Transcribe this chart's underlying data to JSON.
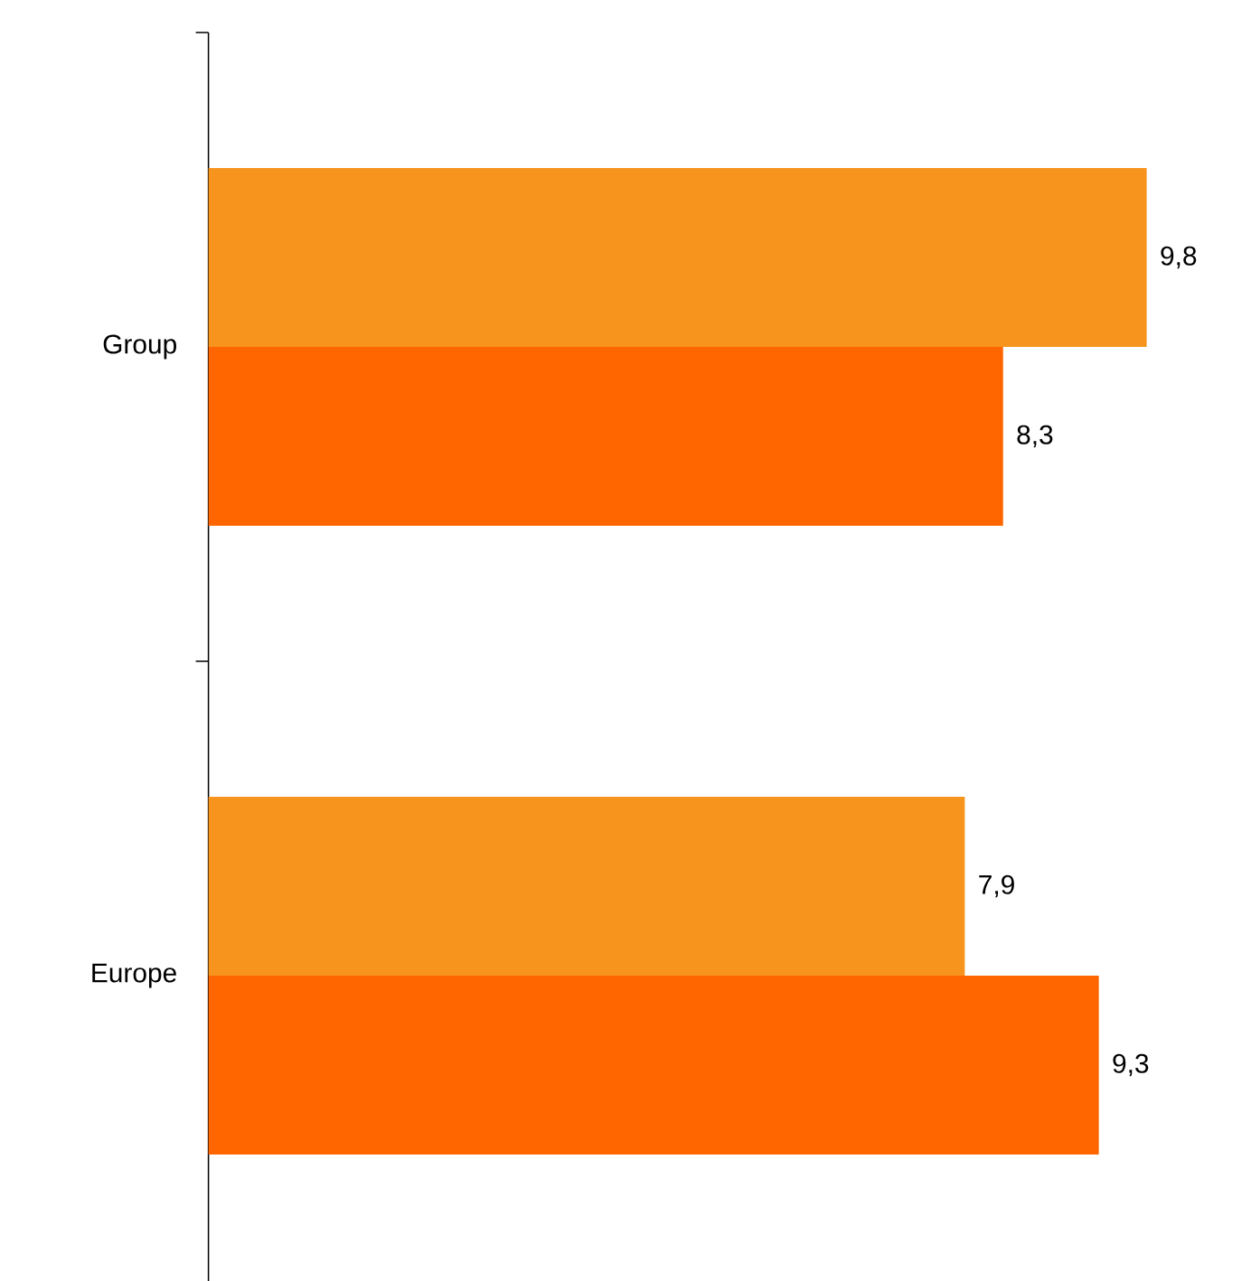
{
  "chart_data": {
    "type": "bar",
    "orientation": "horizontal",
    "categories": [
      "Group",
      "Europe"
    ],
    "series": [
      {
        "color": "#f7941d",
        "values": [
          9.8,
          7.9
        ],
        "value_labels": [
          "9,8",
          "7,9"
        ]
      },
      {
        "color": "#ff6600",
        "values": [
          8.3,
          9.3
        ],
        "value_labels": [
          "8,3",
          "9,3"
        ]
      }
    ],
    "tick_labels": "y"
  }
}
